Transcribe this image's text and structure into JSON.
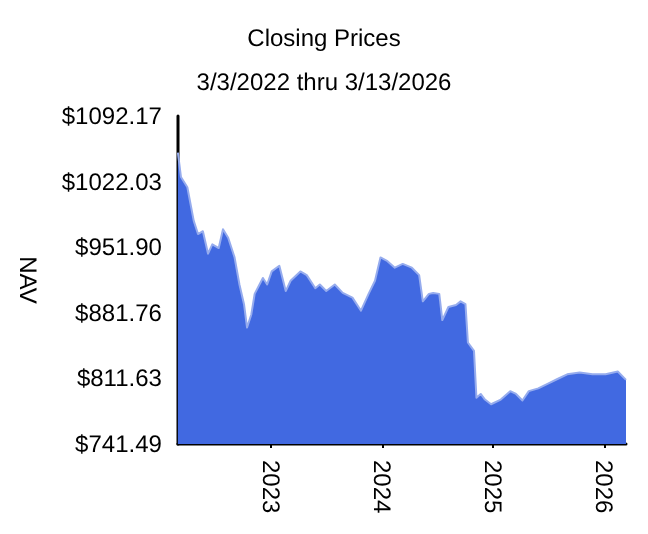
{
  "chart_data": {
    "type": "area",
    "title": "Closing Prices",
    "subtitle": "3/3/2022 thru 3/13/2026",
    "ylabel": "NAV",
    "x": [
      "2022-03-03",
      "2022-03-13",
      "2022-04-03",
      "2022-04-24",
      "2022-05-08",
      "2022-05-24",
      "2022-06-10",
      "2022-06-24",
      "2022-07-15",
      "2022-07-29",
      "2022-08-15",
      "2022-09-05",
      "2022-09-21",
      "2022-10-06",
      "2022-10-16",
      "2022-10-30",
      "2022-11-10",
      "2022-12-07",
      "2022-12-21",
      "2023-01-05",
      "2023-01-30",
      "2023-02-20",
      "2023-03-08",
      "2023-04-09",
      "2023-04-30",
      "2023-05-28",
      "2023-06-12",
      "2023-07-03",
      "2023-07-31",
      "2023-08-26",
      "2023-09-27",
      "2023-10-25",
      "2023-11-19",
      "2023-12-10",
      "2023-12-28",
      "2024-01-20",
      "2024-02-13",
      "2024-03-10",
      "2024-04-09",
      "2024-05-03",
      "2024-05-15",
      "2024-06-04",
      "2024-06-18",
      "2024-07-08",
      "2024-07-18",
      "2024-08-07",
      "2024-09-01",
      "2024-09-16",
      "2024-10-02",
      "2024-10-10",
      "2024-10-30",
      "2024-11-07",
      "2024-11-21",
      "2024-12-05",
      "2024-12-25",
      "2025-01-26",
      "2025-02-26",
      "2025-03-17",
      "2025-04-07",
      "2025-04-28",
      "2025-05-29",
      "2025-06-30",
      "2025-07-31",
      "2025-09-01",
      "2025-10-12",
      "2025-11-23",
      "2026-01-05",
      "2026-02-14",
      "2026-03-13"
    ],
    "series": [
      {
        "color": "#4169e1",
        "values": [
          1053,
          1027,
          1016,
          980,
          966,
          969,
          945,
          955,
          951,
          971,
          962,
          941,
          912,
          891,
          866,
          880,
          902,
          919,
          912,
          926,
          932,
          905,
          916,
          926,
          922,
          908,
          912,
          905,
          912,
          903,
          898,
          884,
          902,
          916,
          941,
          937,
          930,
          934,
          930,
          922,
          894,
          902,
          903,
          902,
          874,
          888,
          890,
          894,
          891,
          850,
          841,
          791,
          795,
          789,
          784,
          789,
          798,
          795,
          788,
          798,
          801,
          806,
          811,
          816,
          818,
          816,
          816,
          819,
          810
        ]
      }
    ],
    "xlim": [
      "2022-03-03",
      "2026-03-13"
    ],
    "xticks": [
      {
        "value": "2023-01-01",
        "label": "2023"
      },
      {
        "value": "2024-01-01",
        "label": "2024"
      },
      {
        "value": "2025-01-01",
        "label": "2025"
      },
      {
        "value": "2026-01-01",
        "label": "2026"
      }
    ],
    "ylim": [
      741.49,
      1092.17
    ],
    "yticks": [
      {
        "value": 741.49,
        "label": "$741.49"
      },
      {
        "value": 811.63,
        "label": "$811.63"
      },
      {
        "value": 881.76,
        "label": "$881.76"
      },
      {
        "value": 951.9,
        "label": "$951.90"
      },
      {
        "value": 1022.03,
        "label": "$1022.03"
      },
      {
        "value": 1092.17,
        "label": "$1092.17"
      }
    ],
    "grid": false
  }
}
